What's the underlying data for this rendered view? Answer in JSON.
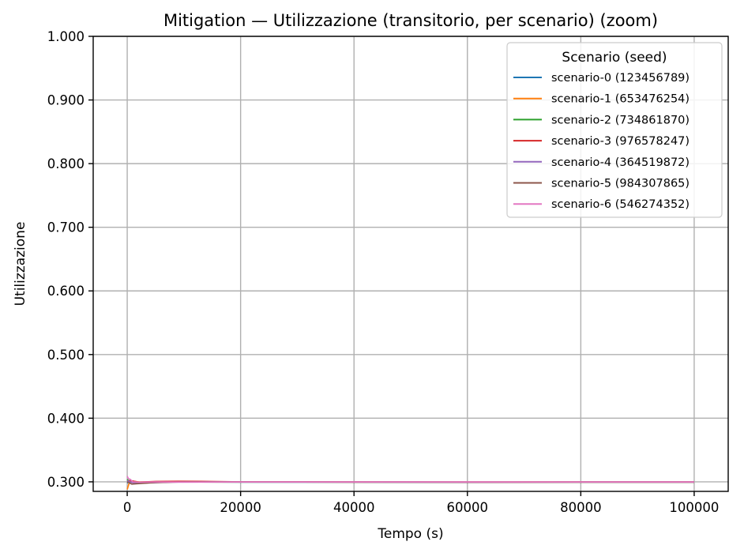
{
  "chart_data": {
    "type": "line",
    "title": "Mitigation — Utilizzazione (transitorio, per scenario) (zoom)",
    "xlabel": "Tempo (s)",
    "ylabel": "Utilizzazione",
    "xlim": [
      -6000,
      106000
    ],
    "ylim": [
      0.285,
      1.0
    ],
    "x_ticks": [
      0,
      20000,
      40000,
      60000,
      80000,
      100000
    ],
    "x_tick_labels": [
      "0",
      "20000",
      "40000",
      "60000",
      "80000",
      "100000"
    ],
    "y_ticks": [
      0.3,
      0.4,
      0.5,
      0.6,
      0.7,
      0.8,
      0.9,
      1.0
    ],
    "y_tick_labels": [
      "0.300",
      "0.400",
      "0.500",
      "0.600",
      "0.700",
      "0.800",
      "0.900",
      "1.000"
    ],
    "grid": true,
    "legend": {
      "title": "Scenario (seed)",
      "placement": "top-right"
    },
    "series": [
      {
        "name": "scenario-0 (123456789)",
        "color": "#1f77b4",
        "points": [
          [
            0,
            0.298
          ],
          [
            500,
            0.302
          ],
          [
            1500,
            0.3
          ],
          [
            3000,
            0.299
          ],
          [
            6000,
            0.3
          ],
          [
            12000,
            0.3
          ],
          [
            20000,
            0.2995
          ],
          [
            40000,
            0.2995
          ],
          [
            60000,
            0.2993
          ],
          [
            80000,
            0.2995
          ],
          [
            100000,
            0.2995
          ]
        ]
      },
      {
        "name": "scenario-1 (653476254)",
        "color": "#ff7f0e",
        "points": [
          [
            0,
            0.288
          ],
          [
            300,
            0.297
          ],
          [
            800,
            0.301
          ],
          [
            2000,
            0.3
          ],
          [
            5000,
            0.2995
          ],
          [
            10000,
            0.2998
          ],
          [
            20000,
            0.2997
          ],
          [
            40000,
            0.2996
          ],
          [
            60000,
            0.2996
          ],
          [
            80000,
            0.2996
          ],
          [
            100000,
            0.2996
          ]
        ]
      },
      {
        "name": "scenario-2 (734861870)",
        "color": "#2ca02c",
        "points": [
          [
            0,
            0.304
          ],
          [
            400,
            0.3
          ],
          [
            1200,
            0.2985
          ],
          [
            3000,
            0.2995
          ],
          [
            8000,
            0.2998
          ],
          [
            16000,
            0.2996
          ],
          [
            30000,
            0.2996
          ],
          [
            50000,
            0.2995
          ],
          [
            70000,
            0.2995
          ],
          [
            90000,
            0.2996
          ],
          [
            100000,
            0.2996
          ]
        ]
      },
      {
        "name": "scenario-3 (976578247)",
        "color": "#d62728",
        "points": [
          [
            0,
            0.301
          ],
          [
            600,
            0.302
          ],
          [
            2000,
            0.2995
          ],
          [
            5000,
            0.3005
          ],
          [
            9000,
            0.3008
          ],
          [
            13000,
            0.3007
          ],
          [
            20000,
            0.3
          ],
          [
            40000,
            0.2998
          ],
          [
            60000,
            0.2996
          ],
          [
            80000,
            0.2997
          ],
          [
            100000,
            0.2997
          ]
        ]
      },
      {
        "name": "scenario-4 (364519872)",
        "color": "#9467bd",
        "points": [
          [
            0,
            0.302
          ],
          [
            500,
            0.3
          ],
          [
            1500,
            0.2975
          ],
          [
            4000,
            0.2985
          ],
          [
            8000,
            0.2995
          ],
          [
            15000,
            0.2997
          ],
          [
            30000,
            0.2996
          ],
          [
            50000,
            0.2996
          ],
          [
            70000,
            0.2995
          ],
          [
            90000,
            0.2996
          ],
          [
            100000,
            0.2996
          ]
        ]
      },
      {
        "name": "scenario-5 (984307865)",
        "color": "#8c564b",
        "points": [
          [
            0,
            0.3
          ],
          [
            800,
            0.2965
          ],
          [
            2500,
            0.2975
          ],
          [
            5000,
            0.299
          ],
          [
            10000,
            0.2998
          ],
          [
            20000,
            0.2997
          ],
          [
            40000,
            0.2996
          ],
          [
            60000,
            0.2996
          ],
          [
            80000,
            0.2996
          ],
          [
            100000,
            0.2996
          ]
        ]
      },
      {
        "name": "scenario-6 (546274352)",
        "color": "#e377c2",
        "points": [
          [
            0,
            0.309
          ],
          [
            200,
            0.305
          ],
          [
            500,
            0.304
          ],
          [
            1000,
            0.3
          ],
          [
            2000,
            0.2995
          ],
          [
            5000,
            0.2998
          ],
          [
            10000,
            0.2996
          ],
          [
            20000,
            0.2997
          ],
          [
            40000,
            0.2997
          ],
          [
            60000,
            0.2997
          ],
          [
            80000,
            0.2997
          ],
          [
            100000,
            0.2997
          ]
        ]
      }
    ]
  }
}
